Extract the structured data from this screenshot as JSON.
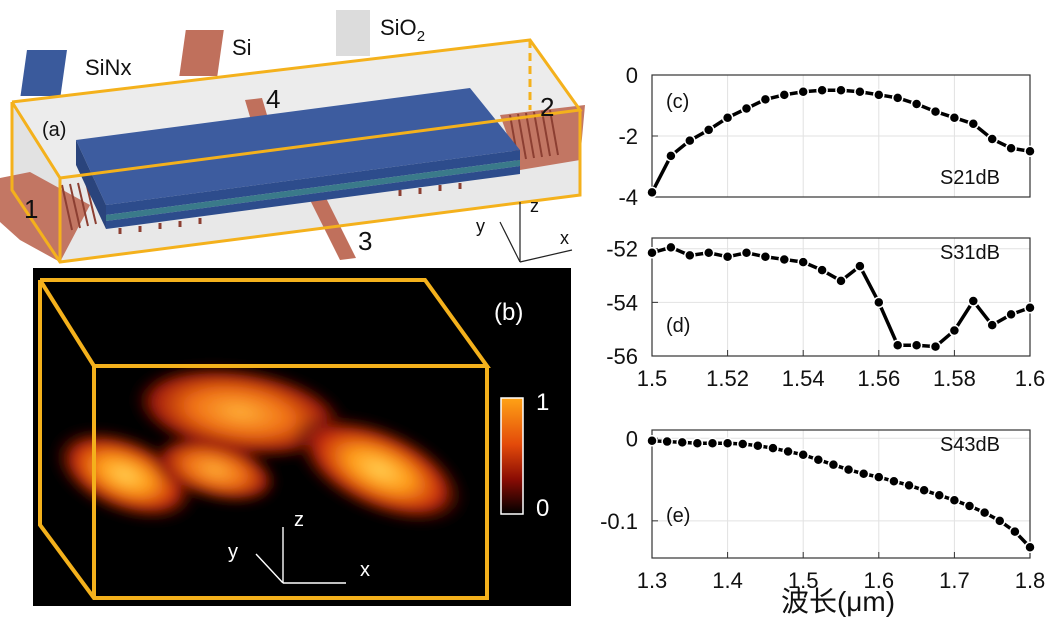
{
  "panel_a": {
    "legend": [
      {
        "label": "SiNx",
        "color": "#3a5a9c"
      },
      {
        "label": "Si",
        "color": "#c0705c"
      },
      {
        "label": "SiO",
        "sub": "2",
        "color": "#dcdcdc"
      }
    ],
    "tag": "(a)",
    "ports": [
      "1",
      "2",
      "3",
      "4"
    ],
    "axes": {
      "x": "x",
      "y": "y",
      "z": "z"
    }
  },
  "panel_b": {
    "tag": "(b)",
    "colorbar_max": "1",
    "colorbar_min": "0",
    "axes": {
      "x": "x",
      "y": "y",
      "z": "z"
    }
  },
  "xlabel_main": "波长(μm)",
  "chart_data": [
    {
      "type": "line",
      "tag": "(c)",
      "annotation": "S21dB",
      "xlim": [
        1.5,
        1.6
      ],
      "ylim": [
        -4,
        0
      ],
      "yticks": [
        "0",
        "-2",
        "-4"
      ],
      "xticks": [],
      "grid": true,
      "x": [
        1.5,
        1.505,
        1.51,
        1.515,
        1.52,
        1.525,
        1.53,
        1.535,
        1.54,
        1.545,
        1.55,
        1.555,
        1.56,
        1.565,
        1.57,
        1.575,
        1.58,
        1.585,
        1.59,
        1.595,
        1.6
      ],
      "y": [
        -3.85,
        -2.65,
        -2.15,
        -1.8,
        -1.4,
        -1.1,
        -0.8,
        -0.65,
        -0.55,
        -0.5,
        -0.5,
        -0.55,
        -0.65,
        -0.75,
        -0.95,
        -1.2,
        -1.4,
        -1.6,
        -2.1,
        -2.4,
        -2.5
      ]
    },
    {
      "type": "line",
      "tag": "(d)",
      "annotation": "S31dB",
      "xlim": [
        1.5,
        1.6
      ],
      "ylim": [
        -56,
        -51.6
      ],
      "yticks": [
        "-52",
        "-54",
        "-56"
      ],
      "xticks": [
        "1.5",
        "1.52",
        "1.54",
        "1.56",
        "1.58",
        "1.6"
      ],
      "grid": true,
      "x": [
        1.5,
        1.505,
        1.51,
        1.515,
        1.52,
        1.525,
        1.53,
        1.535,
        1.54,
        1.545,
        1.55,
        1.555,
        1.56,
        1.565,
        1.57,
        1.575,
        1.58,
        1.585,
        1.59,
        1.595,
        1.6
      ],
      "y": [
        -52.15,
        -51.95,
        -52.25,
        -52.15,
        -52.3,
        -52.15,
        -52.3,
        -52.4,
        -52.5,
        -52.8,
        -53.2,
        -52.65,
        -54,
        -55.6,
        -55.6,
        -55.65,
        -55.05,
        -53.95,
        -54.85,
        -54.45,
        -54.2
      ]
    },
    {
      "type": "line",
      "tag": "(e)",
      "annotation": "S43dB",
      "xlim": [
        1.3,
        1.8
      ],
      "ylim": [
        -0.145,
        0.01
      ],
      "yticks": [
        "0",
        "-0.1"
      ],
      "xticks": [
        "1.3",
        "1.4",
        "1.5",
        "1.6",
        "1.7",
        "1.8"
      ],
      "grid": true,
      "x": [
        1.3,
        1.32,
        1.34,
        1.36,
        1.38,
        1.4,
        1.42,
        1.44,
        1.46,
        1.48,
        1.5,
        1.52,
        1.54,
        1.56,
        1.58,
        1.6,
        1.62,
        1.64,
        1.66,
        1.68,
        1.7,
        1.72,
        1.74,
        1.76,
        1.78,
        1.8
      ],
      "y": [
        -0.003,
        -0.004,
        -0.005,
        -0.006,
        -0.006,
        -0.006,
        -0.007,
        -0.009,
        -0.012,
        -0.016,
        -0.02,
        -0.026,
        -0.032,
        -0.038,
        -0.043,
        -0.047,
        -0.052,
        -0.057,
        -0.063,
        -0.069,
        -0.075,
        -0.082,
        -0.09,
        -0.1,
        -0.113,
        -0.132
      ]
    }
  ]
}
